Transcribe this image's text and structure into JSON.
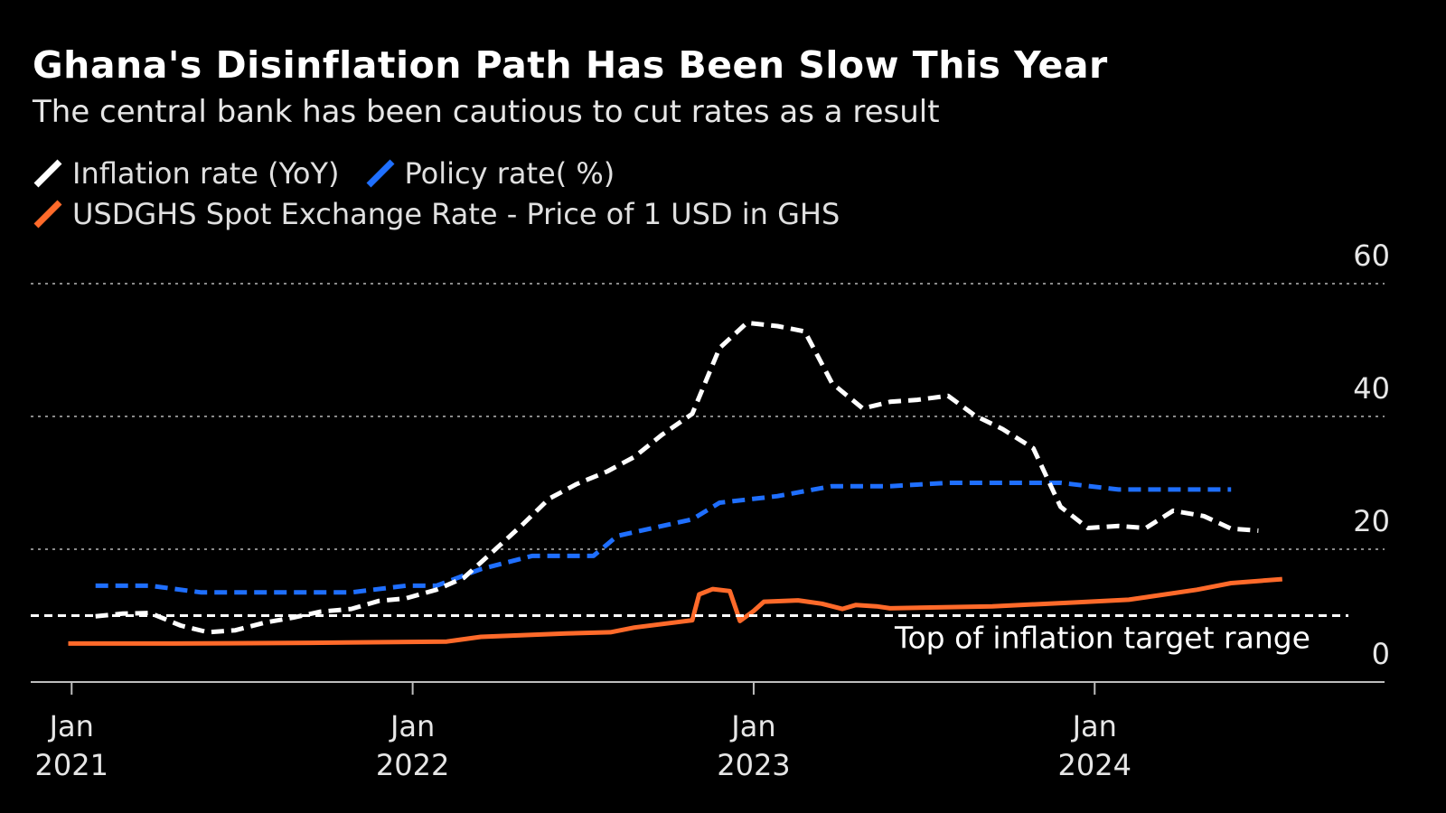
{
  "chart_data": {
    "type": "line",
    "title": "Ghana's Disinflation Path Has Been Slow This Year",
    "subtitle": "The central bank has been cautious to cut rates as a result",
    "ylim": [
      0,
      60
    ],
    "yticks": [
      "0",
      "20",
      "40",
      "60"
    ],
    "xticks": [
      {
        "month": "Jan",
        "year": "2021",
        "t": 2021.0
      },
      {
        "month": "Jan",
        "year": "2022",
        "t": 2022.0
      },
      {
        "month": "Jan",
        "year": "2023",
        "t": 2023.0
      },
      {
        "month": "Jan",
        "year": "2024",
        "t": 2024.0
      }
    ],
    "xlim": [
      2020.88,
      2024.85
    ],
    "grid": true,
    "legend_placement": "top-left",
    "series": [
      {
        "name": "Inflation rate (YoY)",
        "color": "#ffffff",
        "style": "dashed",
        "points": [
          [
            2021.07,
            9.9
          ],
          [
            2021.15,
            10.3
          ],
          [
            2021.23,
            10.4
          ],
          [
            2021.32,
            8.5
          ],
          [
            2021.4,
            7.5
          ],
          [
            2021.48,
            7.8
          ],
          [
            2021.57,
            9.0
          ],
          [
            2021.65,
            9.7
          ],
          [
            2021.73,
            10.6
          ],
          [
            2021.82,
            11.0
          ],
          [
            2021.9,
            12.2
          ],
          [
            2021.98,
            12.6
          ],
          [
            2022.07,
            13.9
          ],
          [
            2022.15,
            15.7
          ],
          [
            2022.23,
            19.4
          ],
          [
            2022.32,
            23.6
          ],
          [
            2022.4,
            27.6
          ],
          [
            2022.48,
            29.8
          ],
          [
            2022.57,
            31.7
          ],
          [
            2022.65,
            33.9
          ],
          [
            2022.73,
            37.2
          ],
          [
            2022.82,
            40.4
          ],
          [
            2022.9,
            50.3
          ],
          [
            2022.98,
            54.1
          ],
          [
            2023.07,
            53.6
          ],
          [
            2023.15,
            52.8
          ],
          [
            2023.23,
            45.0
          ],
          [
            2023.32,
            41.2
          ],
          [
            2023.4,
            42.2
          ],
          [
            2023.48,
            42.5
          ],
          [
            2023.57,
            43.1
          ],
          [
            2023.65,
            40.1
          ],
          [
            2023.73,
            38.1
          ],
          [
            2023.82,
            35.2
          ],
          [
            2023.9,
            26.4
          ],
          [
            2023.98,
            23.2
          ],
          [
            2024.07,
            23.5
          ],
          [
            2024.15,
            23.2
          ],
          [
            2024.23,
            25.8
          ],
          [
            2024.32,
            25.0
          ],
          [
            2024.4,
            23.1
          ],
          [
            2024.48,
            22.8
          ]
        ]
      },
      {
        "name": "Policy rate( %)",
        "color": "#1f6fff",
        "style": "dashed",
        "points": [
          [
            2021.07,
            14.5
          ],
          [
            2021.23,
            14.5
          ],
          [
            2021.38,
            13.5
          ],
          [
            2021.82,
            13.5
          ],
          [
            2021.98,
            14.5
          ],
          [
            2022.07,
            14.5
          ],
          [
            2022.2,
            17.0
          ],
          [
            2022.35,
            19.0
          ],
          [
            2022.53,
            19.0
          ],
          [
            2022.6,
            22.0
          ],
          [
            2022.82,
            24.5
          ],
          [
            2022.9,
            27.0
          ],
          [
            2023.07,
            28.0
          ],
          [
            2023.23,
            29.5
          ],
          [
            2023.4,
            29.5
          ],
          [
            2023.57,
            30.0
          ],
          [
            2023.9,
            30.0
          ],
          [
            2024.07,
            29.0
          ],
          [
            2024.4,
            29.0
          ]
        ]
      },
      {
        "name": "USDGHS Spot Exchange Rate - Price of 1 USD in GHS",
        "color": "#ff6a2a",
        "style": "solid",
        "points": [
          [
            2020.99,
            5.8
          ],
          [
            2021.3,
            5.8
          ],
          [
            2021.7,
            5.9
          ],
          [
            2022.1,
            6.1
          ],
          [
            2022.2,
            6.8
          ],
          [
            2022.45,
            7.3
          ],
          [
            2022.58,
            7.5
          ],
          [
            2022.65,
            8.2
          ],
          [
            2022.82,
            9.3
          ],
          [
            2022.84,
            13.2
          ],
          [
            2022.88,
            14.0
          ],
          [
            2022.93,
            13.7
          ],
          [
            2022.96,
            9.2
          ],
          [
            2023.0,
            10.7
          ],
          [
            2023.03,
            12.1
          ],
          [
            2023.13,
            12.3
          ],
          [
            2023.2,
            11.8
          ],
          [
            2023.26,
            11.0
          ],
          [
            2023.3,
            11.6
          ],
          [
            2023.36,
            11.4
          ],
          [
            2023.4,
            11.1
          ],
          [
            2023.7,
            11.4
          ],
          [
            2023.95,
            12.0
          ],
          [
            2024.1,
            12.4
          ],
          [
            2024.3,
            13.9
          ],
          [
            2024.4,
            14.9
          ],
          [
            2024.55,
            15.5
          ]
        ]
      }
    ],
    "reference_line": {
      "value": 10,
      "label": "Top of inflation target range"
    }
  }
}
